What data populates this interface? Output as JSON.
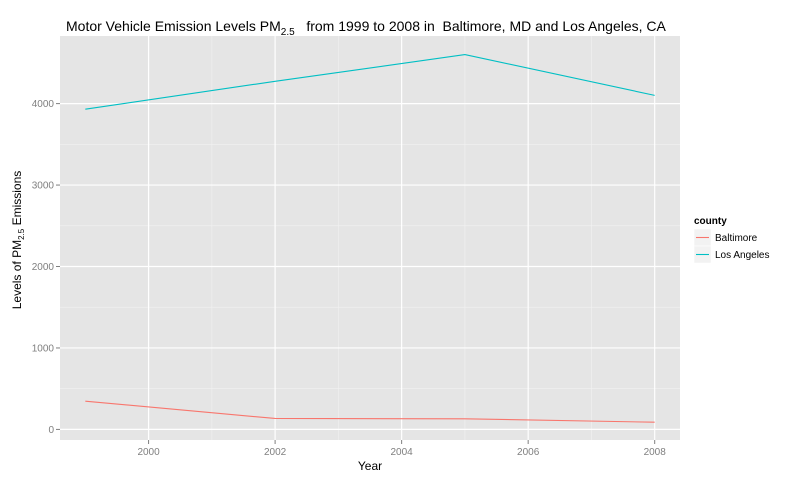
{
  "chart_data": {
    "type": "line",
    "title": {
      "prefix": "Motor Vehicle Emission Levels PM",
      "subscript": "2.5",
      "suffix": "   from 1999 to 2008 in  Baltimore, MD and Los Angeles, CA"
    },
    "xlabel": "Year",
    "ylabel": {
      "prefix": "Levels of PM",
      "subscript": "2.5",
      "suffix": " Emissions"
    },
    "x_ticks": [
      2000,
      2002,
      2004,
      2006,
      2008
    ],
    "y_ticks": [
      0,
      1000,
      2000,
      3000,
      4000
    ],
    "xlim": [
      1998.6,
      2008.4
    ],
    "ylim": [
      -130,
      4830
    ],
    "grid": true,
    "legend": {
      "title": "county",
      "placement": "right"
    },
    "series": [
      {
        "name": "Baltimore",
        "color": "#F8766D",
        "x": [
          1999,
          2002,
          2005,
          2008
        ],
        "values": [
          346.82,
          134.31,
          130.43,
          88.28
        ]
      },
      {
        "name": "Los Angeles",
        "color": "#00BFC4",
        "x": [
          1999,
          2002,
          2005,
          2008
        ],
        "values": [
          3931.12,
          4274.03,
          4601.41,
          4101.32
        ]
      }
    ]
  }
}
